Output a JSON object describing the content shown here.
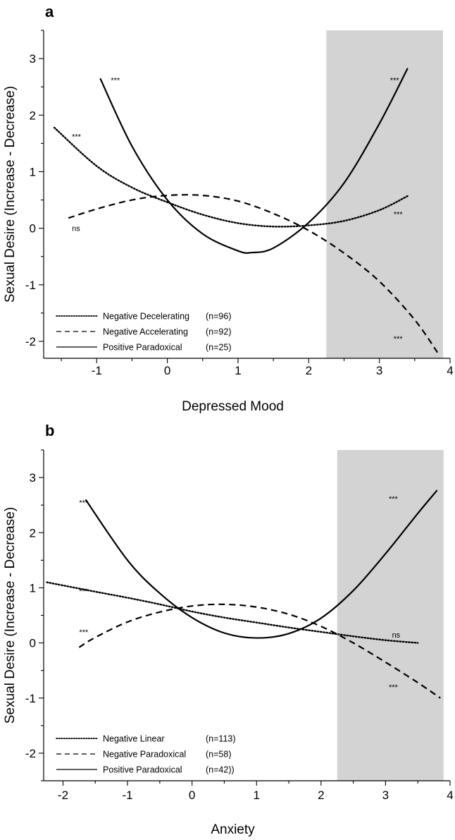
{
  "chart_data": [
    {
      "panel": "a",
      "type": "line",
      "xlabel": "Depressed Mood",
      "ylabel": "Sexual Desire (Increase - Decrease)",
      "xlim": [
        -1.75,
        4.0
      ],
      "ylim": [
        -2.3,
        3.5
      ],
      "xticks": [
        -1,
        0,
        1,
        2,
        3,
        4
      ],
      "yticks": [
        -2,
        -1,
        0,
        1,
        2,
        3
      ],
      "shaded_region": [
        2.25,
        3.9
      ],
      "shade_color": "#d3d3d3",
      "legend_position": "bottom-left",
      "series": [
        {
          "name": "Negative Decelerating",
          "n_label": "(n=96)",
          "style": "dotted",
          "x": [
            -1.6,
            -1.0,
            -0.5,
            0.0,
            0.5,
            1.0,
            1.5,
            2.0,
            2.5,
            3.0,
            3.4
          ],
          "y": [
            1.78,
            1.1,
            0.72,
            0.46,
            0.24,
            0.09,
            0.03,
            0.05,
            0.13,
            0.32,
            0.57
          ]
        },
        {
          "name": "Negative Accelerating",
          "n_label": "(n=92)",
          "style": "dashed",
          "x": [
            -1.4,
            -1.0,
            -0.5,
            0.0,
            0.5,
            1.0,
            1.5,
            2.0,
            2.5,
            3.0,
            3.5,
            3.85
          ],
          "y": [
            0.18,
            0.34,
            0.5,
            0.58,
            0.58,
            0.48,
            0.26,
            -0.04,
            -0.44,
            -0.94,
            -1.62,
            -2.25
          ]
        },
        {
          "name": "Positive Paradoxical",
          "n_label": "(n=25)",
          "style": "solid",
          "x": [
            -0.95,
            -0.5,
            0.0,
            0.5,
            1.0,
            1.2,
            1.5,
            2.0,
            2.5,
            3.0,
            3.4
          ],
          "y": [
            2.65,
            1.45,
            0.5,
            -0.1,
            -0.4,
            -0.43,
            -0.35,
            0.1,
            0.8,
            1.85,
            2.83
          ]
        }
      ],
      "annotations": [
        {
          "text": "***",
          "x": -0.8,
          "y": 2.62
        },
        {
          "text": "***",
          "x": 3.15,
          "y": 2.62
        },
        {
          "text": "***",
          "x": -1.35,
          "y": 1.62
        },
        {
          "text": "***",
          "x": 3.2,
          "y": 0.25
        },
        {
          "text": "ns",
          "x": -1.35,
          "y": 0.0
        },
        {
          "text": "***",
          "x": 3.2,
          "y": -1.95
        }
      ]
    },
    {
      "panel": "b",
      "type": "line",
      "xlabel": "Anxiety",
      "ylabel": "Sexual Desire (Increase - Decrease)",
      "xlim": [
        -2.3,
        4.0
      ],
      "ylim": [
        -2.5,
        3.5
      ],
      "xticks": [
        -2,
        -1,
        0,
        1,
        2,
        3,
        4
      ],
      "yticks": [
        -2,
        -1,
        0,
        1,
        2,
        3
      ],
      "shaded_region": [
        2.25,
        3.9
      ],
      "shade_color": "#d3d3d3",
      "legend_position": "bottom-left",
      "series": [
        {
          "name": "Negative Linear",
          "n_label": "(n=113)",
          "style": "dotted",
          "x": [
            -2.25,
            -1.5,
            -1.0,
            -0.5,
            0.0,
            0.5,
            1.0,
            1.5,
            2.0,
            2.5,
            3.0,
            3.5
          ],
          "y": [
            1.1,
            0.93,
            0.82,
            0.7,
            0.57,
            0.46,
            0.37,
            0.28,
            0.2,
            0.12,
            0.05,
            0.0
          ]
        },
        {
          "name": "Negative Paradoxical",
          "n_label": "(n=58)",
          "style": "dashed",
          "x": [
            -1.75,
            -1.5,
            -1.0,
            -0.5,
            0.0,
            0.5,
            1.0,
            1.5,
            2.0,
            2.5,
            3.0,
            3.5,
            3.85
          ],
          "y": [
            -0.08,
            0.1,
            0.38,
            0.56,
            0.67,
            0.7,
            0.65,
            0.52,
            0.3,
            0.0,
            -0.35,
            -0.72,
            -1.0
          ]
        },
        {
          "name": "Positive Paradoxical",
          "n_label": "(n=42))",
          "style": "solid",
          "x": [
            -1.65,
            -1.0,
            -0.5,
            0.0,
            0.5,
            1.0,
            1.5,
            2.0,
            2.5,
            3.0,
            3.5,
            3.8
          ],
          "y": [
            2.6,
            1.5,
            0.9,
            0.46,
            0.18,
            0.09,
            0.17,
            0.45,
            0.95,
            1.62,
            2.35,
            2.77
          ]
        }
      ],
      "annotations": [
        {
          "text": "***",
          "x": -1.75,
          "y": 2.55
        },
        {
          "text": "***",
          "x": 3.05,
          "y": 2.62
        },
        {
          "text": "***",
          "x": -1.75,
          "y": 0.94
        },
        {
          "text": "***",
          "x": -1.75,
          "y": 0.2
        },
        {
          "text": "ns",
          "x": 3.1,
          "y": 0.15
        },
        {
          "text": "***",
          "x": 3.05,
          "y": -0.8
        }
      ]
    }
  ]
}
